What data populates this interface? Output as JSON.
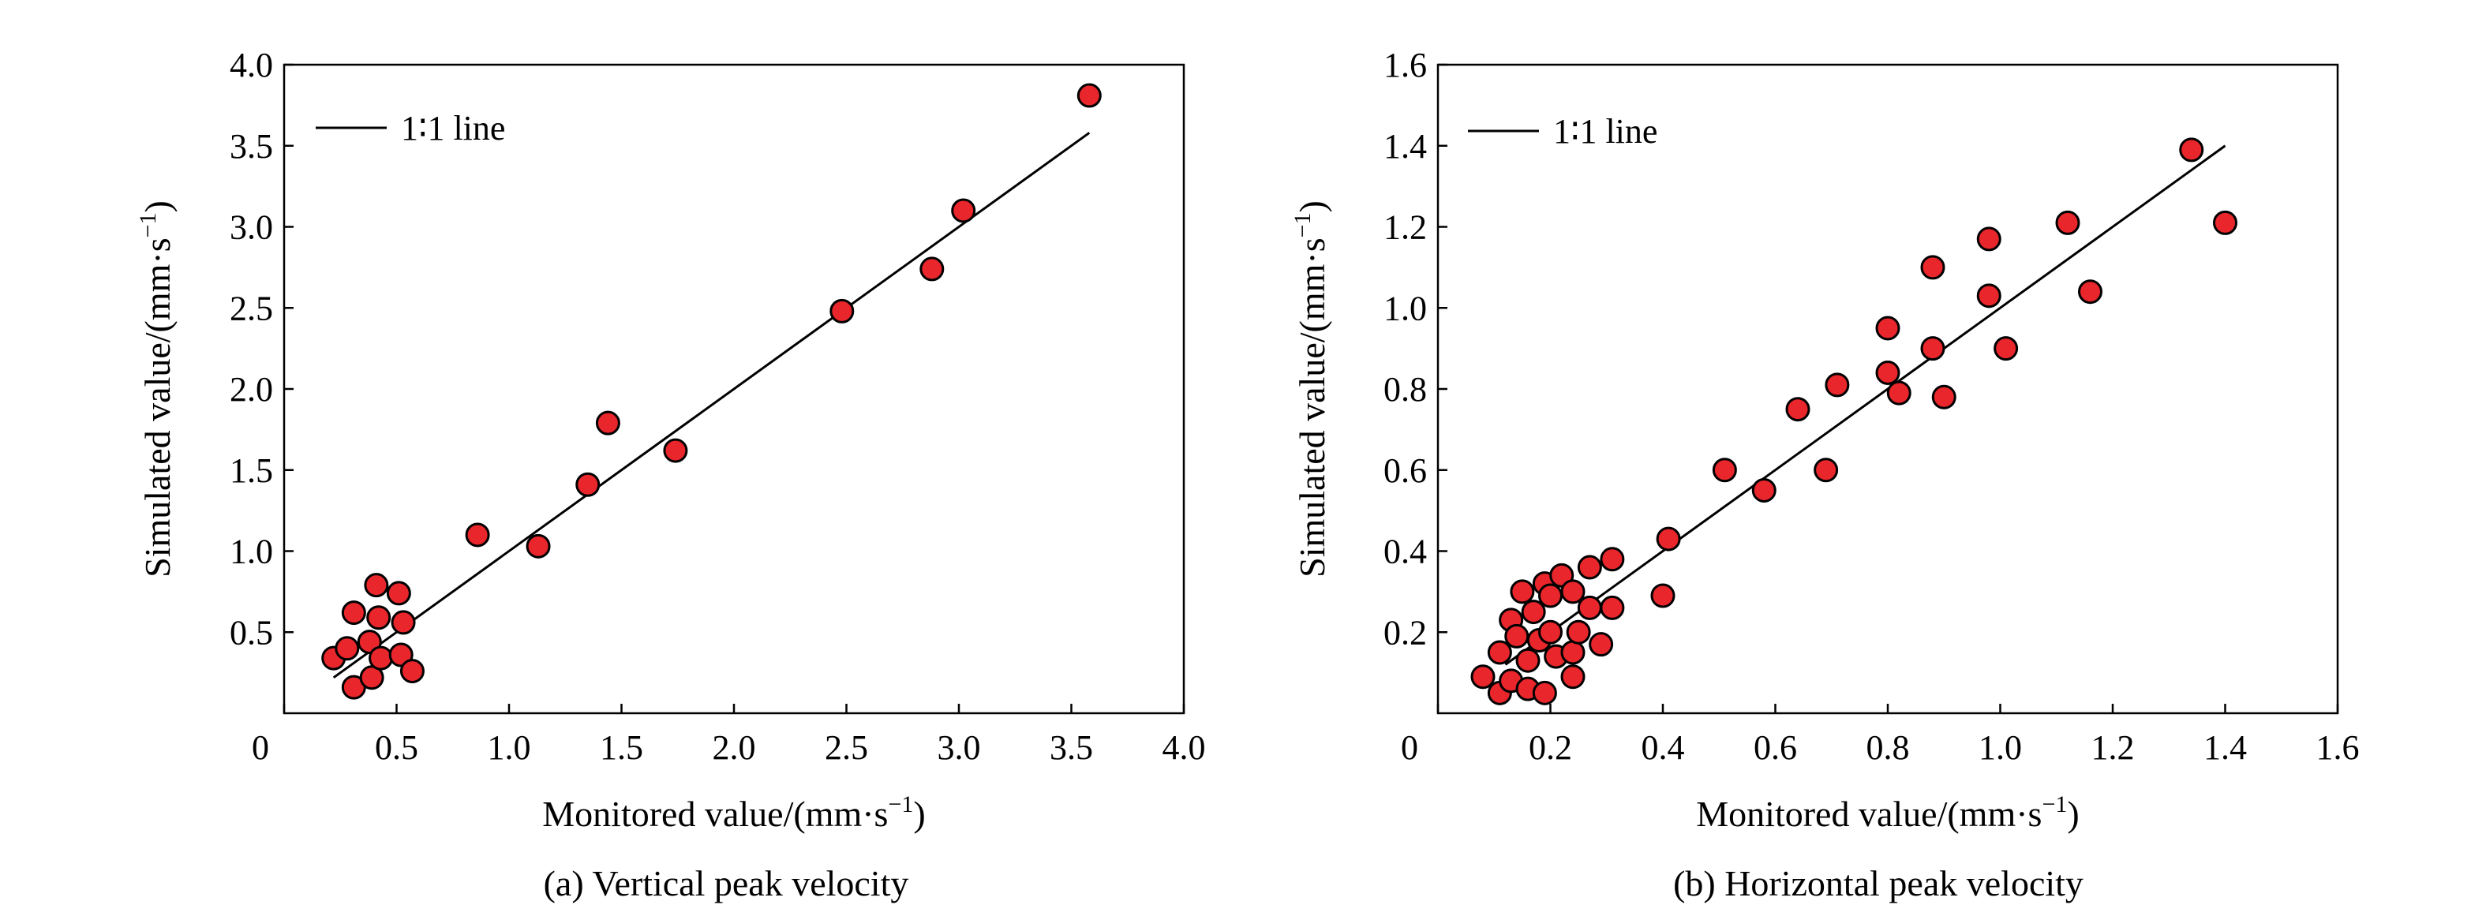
{
  "chart_data": [
    {
      "type": "scatter",
      "caption": "(a) Vertical peak velocity",
      "xlabel": "Monitored value/(mm·s",
      "ylabel": "Simulated value/(mm·s",
      "unit_superscript": "−1",
      "unit_close": ")",
      "xlim": [
        0,
        4.0
      ],
      "ylim": [
        0,
        4.0
      ],
      "x_ticks": [
        0,
        0.5,
        1.0,
        1.5,
        2.0,
        2.5,
        3.0,
        3.5,
        4.0
      ],
      "x_tick_labels": [
        "0",
        "0.5",
        "1.0",
        "1.5",
        "2.0",
        "2.5",
        "3.0",
        "3.5",
        "4.0"
      ],
      "y_ticks": [
        0.5,
        1.0,
        1.5,
        2.0,
        2.5,
        3.0,
        3.5,
        4.0
      ],
      "y_tick_labels": [
        "0.5",
        "1.0",
        "1.5",
        "2.0",
        "2.5",
        "3.0",
        "3.5",
        "4.0"
      ],
      "legend": {
        "label": "1∶1 line",
        "placement": "top-left"
      },
      "line_1to1": {
        "from": [
          0.22,
          0.22
        ],
        "to": [
          3.58,
          3.58
        ]
      },
      "point_color": "#e8262b",
      "points": [
        [
          0.22,
          0.34
        ],
        [
          0.28,
          0.4
        ],
        [
          0.31,
          0.62
        ],
        [
          0.31,
          0.16
        ],
        [
          0.38,
          0.44
        ],
        [
          0.39,
          0.22
        ],
        [
          0.41,
          0.79
        ],
        [
          0.42,
          0.59
        ],
        [
          0.43,
          0.34
        ],
        [
          0.51,
          0.74
        ],
        [
          0.52,
          0.36
        ],
        [
          0.53,
          0.56
        ],
        [
          0.57,
          0.26
        ],
        [
          0.86,
          1.1
        ],
        [
          1.13,
          1.03
        ],
        [
          1.35,
          1.41
        ],
        [
          1.44,
          1.79
        ],
        [
          1.74,
          1.62
        ],
        [
          2.48,
          2.48
        ],
        [
          2.88,
          2.74
        ],
        [
          3.02,
          3.1
        ],
        [
          3.58,
          3.81
        ]
      ]
    },
    {
      "type": "scatter",
      "caption": "(b) Horizontal peak velocity",
      "xlabel": "Monitored value/(mm·s",
      "ylabel": "Simulated value/(mm·s",
      "unit_superscript": "−1",
      "unit_close": ")",
      "xlim": [
        0,
        1.6
      ],
      "ylim": [
        0,
        1.6
      ],
      "x_ticks": [
        0,
        0.2,
        0.4,
        0.6,
        0.8,
        1.0,
        1.2,
        1.4,
        1.6
      ],
      "x_tick_labels": [
        "0",
        "0.2",
        "0.4",
        "0.6",
        "0.8",
        "1.0",
        "1.2",
        "1.4",
        "1.6"
      ],
      "y_ticks": [
        0.2,
        0.4,
        0.6,
        0.8,
        1.0,
        1.2,
        1.4,
        1.6
      ],
      "y_tick_labels": [
        "0.2",
        "0.4",
        "0.6",
        "0.8",
        "1.0",
        "1.2",
        "1.4",
        "1.6"
      ],
      "legend": {
        "label": "1∶1 line",
        "placement": "top-left"
      },
      "line_1to1": {
        "from": [
          0.12,
          0.12
        ],
        "to": [
          1.4,
          1.4
        ]
      },
      "point_color": "#e8262b",
      "points": [
        [
          0.08,
          0.09
        ],
        [
          0.11,
          0.05
        ],
        [
          0.11,
          0.15
        ],
        [
          0.13,
          0.23
        ],
        [
          0.13,
          0.08
        ],
        [
          0.14,
          0.19
        ],
        [
          0.15,
          0.3
        ],
        [
          0.16,
          0.13
        ],
        [
          0.16,
          0.06
        ],
        [
          0.17,
          0.25
        ],
        [
          0.18,
          0.18
        ],
        [
          0.19,
          0.32
        ],
        [
          0.19,
          0.05
        ],
        [
          0.2,
          0.29
        ],
        [
          0.2,
          0.2
        ],
        [
          0.21,
          0.14
        ],
        [
          0.22,
          0.34
        ],
        [
          0.24,
          0.3
        ],
        [
          0.24,
          0.15
        ],
        [
          0.24,
          0.09
        ],
        [
          0.25,
          0.2
        ],
        [
          0.27,
          0.36
        ],
        [
          0.27,
          0.26
        ],
        [
          0.29,
          0.17
        ],
        [
          0.31,
          0.38
        ],
        [
          0.31,
          0.26
        ],
        [
          0.4,
          0.29
        ],
        [
          0.41,
          0.43
        ],
        [
          0.51,
          0.6
        ],
        [
          0.58,
          0.55
        ],
        [
          0.64,
          0.75
        ],
        [
          0.69,
          0.6
        ],
        [
          0.71,
          0.81
        ],
        [
          0.8,
          0.95
        ],
        [
          0.8,
          0.84
        ],
        [
          0.82,
          0.79
        ],
        [
          0.88,
          1.1
        ],
        [
          0.88,
          0.9
        ],
        [
          0.9,
          0.78
        ],
        [
          0.98,
          1.17
        ],
        [
          0.98,
          1.03
        ],
        [
          1.01,
          0.9
        ],
        [
          1.12,
          1.21
        ],
        [
          1.16,
          1.04
        ],
        [
          1.34,
          1.39
        ],
        [
          1.4,
          1.21
        ]
      ]
    }
  ]
}
